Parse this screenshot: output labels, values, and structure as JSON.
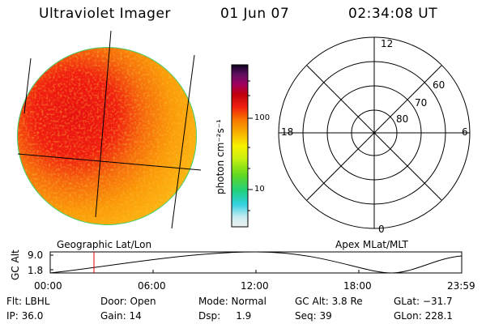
{
  "header": {
    "title": "Ultraviolet Imager",
    "date": "01 Jun 07",
    "time": "02:34:08 UT"
  },
  "image_panel": {
    "caption": "Geographic Lat/Lon"
  },
  "colorbar": {
    "label": "photon cm⁻²s⁻¹",
    "ticks": [
      "100",
      "10"
    ]
  },
  "polar_plot": {
    "caption": "Apex MLat/MLT",
    "mlt_labels": {
      "top": "12",
      "left": "18",
      "right": "6",
      "bottom": "0"
    },
    "lat_labels": [
      "60",
      "70",
      "80"
    ]
  },
  "altitude_plot": {
    "ylabel": "GC Alt",
    "y_ticks": [
      "9.0",
      "1.8"
    ],
    "x_ticks": [
      "00:00",
      "06:00",
      "12:00",
      "18:00",
      "23:59"
    ]
  },
  "footer": {
    "row1": {
      "flt": "Flt: LBHL",
      "door": "Door: Open",
      "mode": "Mode: Normal",
      "gcalt": "GC Alt: 3.8 Re",
      "glat": "GLat: −31.7"
    },
    "row2": {
      "ip": "IP: 36.0",
      "gain": "Gain: 14",
      "dsp": "Dsp:     1.9",
      "seq": "Seq: 39",
      "glon": "GLon: 228.1"
    }
  }
}
